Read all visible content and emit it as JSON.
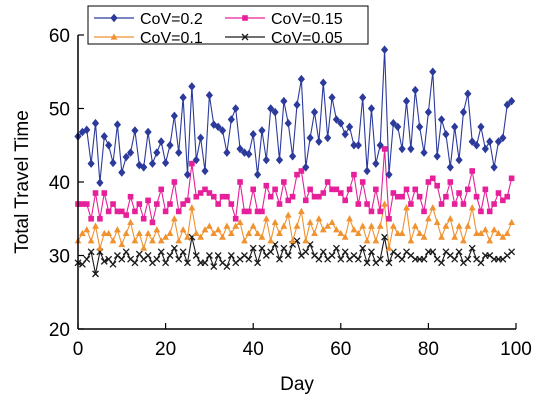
{
  "chart_data": {
    "type": "line",
    "xlabel": "Day",
    "ylabel": "Total Travel Time",
    "xlim": [
      0,
      100
    ],
    "ylim": [
      20,
      60
    ],
    "xticks": [
      0,
      20,
      40,
      60,
      80,
      100
    ],
    "yticks": [
      20,
      30,
      40,
      50,
      60
    ],
    "x_tick_labels": [
      "0",
      "20",
      "40",
      "60",
      "80",
      "100"
    ],
    "y_tick_labels": [
      "20",
      "30",
      "40",
      "50",
      "60"
    ],
    "grid": false,
    "legend_position": "top",
    "x": [
      0,
      1,
      2,
      3,
      4,
      5,
      6,
      7,
      8,
      9,
      10,
      11,
      12,
      13,
      14,
      15,
      16,
      17,
      18,
      19,
      20,
      21,
      22,
      23,
      24,
      25,
      26,
      27,
      28,
      29,
      30,
      31,
      32,
      33,
      34,
      35,
      36,
      37,
      38,
      39,
      40,
      41,
      42,
      43,
      44,
      45,
      46,
      47,
      48,
      49,
      50,
      51,
      52,
      53,
      54,
      55,
      56,
      57,
      58,
      59,
      60,
      61,
      62,
      63,
      64,
      65,
      66,
      67,
      68,
      69,
      70,
      71,
      72,
      73,
      74,
      75,
      76,
      77,
      78,
      79,
      80,
      81,
      82,
      83,
      84,
      85,
      86,
      87,
      88,
      89,
      90,
      91,
      92,
      93,
      94,
      95,
      96,
      97,
      98,
      99
    ],
    "series": [
      {
        "name": "CoV=0.2",
        "color": "#2b3a9b",
        "marker": "diamond",
        "values": [
          46.2,
          46.8,
          47.1,
          42.5,
          48.0,
          39.9,
          46.2,
          45.0,
          42.6,
          47.8,
          41.3,
          43.4,
          44.0,
          47.0,
          42.3,
          42.0,
          46.8,
          42.5,
          44.0,
          45.5,
          42.6,
          45.0,
          49.0,
          44.0,
          51.5,
          41.0,
          53.0,
          43.0,
          46.0,
          41.5,
          51.8,
          47.8,
          47.5,
          47.0,
          44.0,
          48.5,
          50.0,
          44.5,
          44.0,
          43.8,
          46.5,
          41.0,
          47.0,
          43.0,
          50.0,
          49.5,
          43.0,
          51.0,
          48.0,
          43.5,
          50.5,
          54.0,
          42.0,
          46.0,
          49.5,
          45.5,
          53.5,
          46.0,
          51.5,
          48.5,
          48.0,
          46.5,
          47.5,
          45.0,
          45.0,
          51.5,
          41.5,
          50.0,
          42.5,
          45.0,
          58.0,
          41.0,
          48.0,
          47.5,
          44.5,
          51.0,
          44.5,
          52.5,
          47.5,
          44.0,
          49.5,
          55.0,
          43.5,
          48.5,
          46.5,
          42.0,
          47.5,
          43.0,
          49.5,
          52.0,
          45.5,
          45.0,
          47.5,
          44.5,
          45.5,
          42.0,
          45.5,
          46.0,
          50.5,
          51.0
        ]
      },
      {
        "name": "CoV=0.15",
        "color": "#e6209a",
        "marker": "square",
        "values": [
          37.0,
          37.0,
          37.0,
          35.0,
          38.5,
          35.0,
          38.5,
          36.0,
          37.0,
          36.0,
          36.0,
          35.5,
          38.0,
          36.0,
          37.0,
          35.0,
          37.5,
          34.5,
          37.0,
          39.0,
          36.0,
          37.0,
          40.0,
          36.0,
          37.0,
          37.5,
          42.5,
          38.0,
          38.5,
          39.0,
          38.5,
          38.0,
          37.0,
          38.0,
          38.0,
          37.0,
          35.0,
          40.0,
          36.0,
          36.0,
          39.0,
          36.0,
          36.0,
          39.5,
          38.0,
          39.0,
          37.0,
          40.0,
          37.5,
          38.0,
          41.0,
          41.5,
          37.5,
          39.0,
          38.0,
          38.0,
          38.5,
          40.0,
          39.0,
          39.0,
          38.5,
          37.5,
          39.0,
          41.0,
          37.0,
          40.0,
          37.0,
          36.0,
          39.0,
          36.0,
          44.5,
          35.0,
          38.5,
          38.0,
          38.0,
          39.0,
          37.0,
          39.0,
          38.0,
          36.0,
          40.0,
          40.5,
          39.5,
          37.0,
          38.0,
          40.0,
          37.0,
          38.5,
          37.0,
          39.0,
          41.5,
          38.0,
          36.0,
          39.0,
          36.0,
          37.0,
          38.5,
          37.5,
          38.0,
          40.5
        ]
      },
      {
        "name": "CoV=0.1",
        "color": "#f0922f",
        "marker": "triangle",
        "values": [
          32.0,
          33.0,
          33.5,
          32.0,
          34.0,
          31.0,
          33.0,
          33.0,
          32.0,
          33.5,
          31.5,
          33.0,
          34.5,
          32.0,
          33.0,
          31.0,
          33.0,
          32.0,
          33.5,
          32.0,
          32.5,
          33.0,
          35.0,
          32.0,
          33.5,
          32.5,
          36.5,
          33.0,
          32.5,
          33.5,
          34.0,
          33.0,
          33.5,
          32.5,
          34.0,
          33.0,
          34.0,
          34.5,
          32.0,
          33.0,
          34.0,
          33.0,
          32.5,
          35.0,
          32.0,
          34.5,
          33.0,
          34.0,
          35.5,
          32.0,
          34.0,
          36.0,
          32.0,
          34.5,
          33.0,
          35.0,
          33.5,
          34.0,
          34.5,
          33.5,
          33.0,
          32.5,
          35.0,
          33.5,
          33.0,
          34.0,
          32.0,
          34.0,
          32.0,
          34.0,
          37.0,
          31.0,
          34.0,
          33.0,
          33.0,
          36.5,
          32.0,
          34.0,
          33.0,
          32.5,
          35.0,
          36.5,
          34.5,
          32.5,
          34.0,
          35.0,
          32.5,
          34.0,
          32.0,
          34.0,
          36.5,
          33.0,
          33.0,
          33.5,
          32.0,
          33.5,
          33.0,
          32.5,
          33.0,
          34.5
        ]
      },
      {
        "name": "CoV=0.05",
        "color": "#1a1a1a",
        "marker": "x",
        "values": [
          29.0,
          28.8,
          29.5,
          30.5,
          27.5,
          30.5,
          29.2,
          29.5,
          28.8,
          30.0,
          29.5,
          30.5,
          29.5,
          29.0,
          30.2,
          29.5,
          30.0,
          29.0,
          29.5,
          30.5,
          29.0,
          30.0,
          31.0,
          29.5,
          30.5,
          29.0,
          32.5,
          30.0,
          29.0,
          29.0,
          30.0,
          28.5,
          30.0,
          29.0,
          28.5,
          30.0,
          29.0,
          29.5,
          30.0,
          29.5,
          31.0,
          29.0,
          31.0,
          30.0,
          30.5,
          31.5,
          29.5,
          31.0,
          30.0,
          31.5,
          32.0,
          30.0,
          30.5,
          31.5,
          30.0,
          29.5,
          30.5,
          29.5,
          30.0,
          31.0,
          29.5,
          30.5,
          29.5,
          30.0,
          29.5,
          31.0,
          29.0,
          30.5,
          29.0,
          29.5,
          32.5,
          29.0,
          30.5,
          30.0,
          29.5,
          30.5,
          30.0,
          29.5,
          29.5,
          29.5,
          30.5,
          30.5,
          29.5,
          29.0,
          30.5,
          30.0,
          29.5,
          30.5,
          29.0,
          29.5,
          31.0,
          29.5,
          29.0,
          30.0,
          30.0,
          29.5,
          29.5,
          29.5,
          30.0,
          30.5
        ]
      }
    ]
  }
}
